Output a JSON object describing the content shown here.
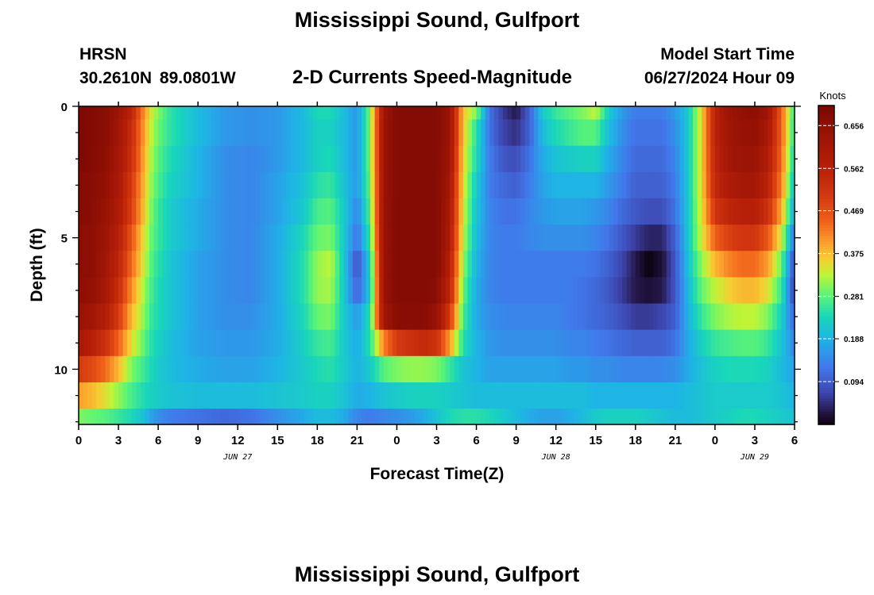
{
  "header": {
    "title": "Mississippi Sound, Gulfport",
    "station_id": "HRSN",
    "station_coords": "30.2610N  89.0801W",
    "subtitle": "2-D Currents Speed-Magnitude",
    "model_start_label": "Model Start Time",
    "model_start_value": "06/27/2024 Hour 09"
  },
  "footer": {
    "title": "Mississippi Sound, Gulfport"
  },
  "chart_data": {
    "type": "heatmap",
    "title": "2-D Currents Speed-Magnitude",
    "xlabel": "Forecast Time(Z)",
    "ylabel": "Depth (ft)",
    "x_range_hours": [
      0,
      54
    ],
    "y_range_ft": [
      0,
      12.1
    ],
    "y_ticks": [
      0,
      5,
      10
    ],
    "x_ticks": [
      0,
      3,
      6,
      9,
      12,
      15,
      18,
      21,
      24,
      27,
      30,
      33,
      36,
      39,
      42,
      45,
      48,
      51,
      54
    ],
    "x_tick_labels": [
      "0",
      "3",
      "6",
      "9",
      "12",
      "15",
      "18",
      "21",
      "0",
      "3",
      "6",
      "9",
      "12",
      "15",
      "18",
      "21",
      "0",
      "3",
      "6"
    ],
    "date_labels": [
      {
        "hour": 12,
        "text": "JUN 27"
      },
      {
        "hour": 36,
        "text": "JUN 28"
      },
      {
        "hour": 51,
        "text": "JUN 29"
      }
    ],
    "colorbar": {
      "unit": "Knots",
      "min": 0.0,
      "max": 0.7,
      "ticks": [
        0.094,
        0.188,
        0.281,
        0.375,
        0.469,
        0.562,
        0.656
      ]
    },
    "depth_levels_ft": [
      0,
      1,
      2,
      3,
      4,
      5,
      6,
      7,
      8,
      9,
      10,
      11,
      12
    ],
    "time_keyframes_hours": [
      0,
      1,
      2,
      3,
      4,
      5,
      5.5,
      6,
      7,
      9,
      11,
      13,
      15,
      17,
      18,
      19,
      20,
      21,
      22,
      23,
      24,
      25,
      26,
      27,
      28,
      29,
      30,
      31,
      32,
      33,
      34,
      35,
      36,
      37,
      38,
      39,
      40,
      41,
      42,
      43,
      44,
      45,
      46,
      47,
      48,
      49,
      50,
      51,
      52,
      53,
      54
    ],
    "speed_knots_at_depth": [
      [
        0.69,
        0.68,
        0.67,
        0.63,
        0.55,
        0.4,
        0.34,
        0.3,
        0.25,
        0.2,
        0.16,
        0.15,
        0.16,
        0.2,
        0.24,
        0.24,
        0.2,
        0.16,
        0.3,
        0.62,
        0.68,
        0.68,
        0.68,
        0.68,
        0.63,
        0.37,
        0.3,
        0.12,
        0.06,
        0.03,
        0.1,
        0.22,
        0.26,
        0.28,
        0.3,
        0.33,
        0.22,
        0.16,
        0.13,
        0.13,
        0.13,
        0.16,
        0.22,
        0.36,
        0.56,
        0.63,
        0.65,
        0.66,
        0.62,
        0.45,
        0.25
      ],
      [
        0.69,
        0.68,
        0.67,
        0.62,
        0.53,
        0.39,
        0.33,
        0.29,
        0.25,
        0.2,
        0.16,
        0.15,
        0.16,
        0.2,
        0.23,
        0.23,
        0.2,
        0.16,
        0.3,
        0.63,
        0.68,
        0.68,
        0.68,
        0.68,
        0.63,
        0.37,
        0.25,
        0.12,
        0.07,
        0.05,
        0.1,
        0.2,
        0.24,
        0.26,
        0.28,
        0.28,
        0.2,
        0.15,
        0.12,
        0.12,
        0.12,
        0.15,
        0.22,
        0.36,
        0.56,
        0.62,
        0.64,
        0.65,
        0.6,
        0.45,
        0.24
      ],
      [
        0.69,
        0.68,
        0.66,
        0.61,
        0.52,
        0.38,
        0.32,
        0.28,
        0.24,
        0.19,
        0.15,
        0.14,
        0.16,
        0.2,
        0.23,
        0.24,
        0.2,
        0.16,
        0.3,
        0.63,
        0.68,
        0.68,
        0.68,
        0.68,
        0.62,
        0.36,
        0.24,
        0.13,
        0.09,
        0.08,
        0.12,
        0.18,
        0.21,
        0.22,
        0.23,
        0.23,
        0.18,
        0.14,
        0.11,
        0.11,
        0.11,
        0.14,
        0.22,
        0.36,
        0.55,
        0.61,
        0.63,
        0.63,
        0.58,
        0.44,
        0.22
      ],
      [
        0.68,
        0.67,
        0.65,
        0.6,
        0.5,
        0.37,
        0.31,
        0.27,
        0.23,
        0.19,
        0.15,
        0.14,
        0.17,
        0.21,
        0.25,
        0.26,
        0.21,
        0.16,
        0.29,
        0.63,
        0.68,
        0.68,
        0.68,
        0.68,
        0.61,
        0.35,
        0.22,
        0.13,
        0.11,
        0.1,
        0.13,
        0.17,
        0.19,
        0.19,
        0.19,
        0.19,
        0.16,
        0.13,
        0.1,
        0.1,
        0.1,
        0.13,
        0.22,
        0.36,
        0.54,
        0.59,
        0.61,
        0.61,
        0.56,
        0.42,
        0.2
      ],
      [
        0.68,
        0.67,
        0.64,
        0.59,
        0.49,
        0.36,
        0.3,
        0.26,
        0.22,
        0.18,
        0.15,
        0.14,
        0.17,
        0.22,
        0.27,
        0.28,
        0.22,
        0.14,
        0.28,
        0.64,
        0.68,
        0.68,
        0.68,
        0.68,
        0.6,
        0.34,
        0.21,
        0.14,
        0.12,
        0.12,
        0.14,
        0.16,
        0.17,
        0.17,
        0.17,
        0.16,
        0.14,
        0.11,
        0.09,
        0.08,
        0.08,
        0.12,
        0.22,
        0.35,
        0.51,
        0.55,
        0.57,
        0.57,
        0.52,
        0.39,
        0.17
      ],
      [
        0.67,
        0.66,
        0.63,
        0.57,
        0.46,
        0.34,
        0.29,
        0.26,
        0.22,
        0.18,
        0.15,
        0.14,
        0.18,
        0.24,
        0.29,
        0.3,
        0.22,
        0.12,
        0.26,
        0.64,
        0.68,
        0.68,
        0.68,
        0.68,
        0.59,
        0.33,
        0.2,
        0.14,
        0.13,
        0.13,
        0.14,
        0.15,
        0.15,
        0.15,
        0.15,
        0.14,
        0.12,
        0.09,
        0.06,
        0.04,
        0.04,
        0.1,
        0.22,
        0.34,
        0.45,
        0.49,
        0.51,
        0.51,
        0.46,
        0.34,
        0.12
      ],
      [
        0.67,
        0.66,
        0.62,
        0.55,
        0.44,
        0.33,
        0.28,
        0.25,
        0.21,
        0.17,
        0.15,
        0.14,
        0.18,
        0.25,
        0.31,
        0.33,
        0.22,
        0.08,
        0.23,
        0.64,
        0.68,
        0.68,
        0.68,
        0.68,
        0.57,
        0.31,
        0.19,
        0.14,
        0.13,
        0.13,
        0.13,
        0.13,
        0.13,
        0.13,
        0.13,
        0.12,
        0.1,
        0.07,
        0.03,
        0.0,
        0.02,
        0.09,
        0.21,
        0.31,
        0.38,
        0.42,
        0.44,
        0.44,
        0.4,
        0.29,
        0.07
      ],
      [
        0.66,
        0.65,
        0.61,
        0.53,
        0.41,
        0.31,
        0.27,
        0.24,
        0.21,
        0.17,
        0.15,
        0.14,
        0.18,
        0.25,
        0.31,
        0.32,
        0.22,
        0.1,
        0.22,
        0.64,
        0.68,
        0.68,
        0.68,
        0.67,
        0.55,
        0.29,
        0.18,
        0.14,
        0.13,
        0.13,
        0.13,
        0.13,
        0.13,
        0.13,
        0.12,
        0.11,
        0.09,
        0.06,
        0.03,
        0.02,
        0.03,
        0.09,
        0.2,
        0.29,
        0.33,
        0.36,
        0.38,
        0.38,
        0.35,
        0.26,
        0.06
      ],
      [
        0.64,
        0.62,
        0.58,
        0.5,
        0.38,
        0.3,
        0.26,
        0.24,
        0.21,
        0.17,
        0.15,
        0.15,
        0.18,
        0.24,
        0.29,
        0.3,
        0.22,
        0.16,
        0.25,
        0.62,
        0.67,
        0.67,
        0.67,
        0.64,
        0.5,
        0.27,
        0.18,
        0.15,
        0.14,
        0.14,
        0.14,
        0.14,
        0.14,
        0.13,
        0.12,
        0.11,
        0.1,
        0.08,
        0.06,
        0.06,
        0.07,
        0.1,
        0.19,
        0.26,
        0.3,
        0.32,
        0.33,
        0.33,
        0.3,
        0.23,
        0.1
      ],
      [
        0.6,
        0.57,
        0.52,
        0.45,
        0.35,
        0.28,
        0.25,
        0.23,
        0.2,
        0.17,
        0.16,
        0.16,
        0.18,
        0.23,
        0.26,
        0.27,
        0.22,
        0.18,
        0.25,
        0.42,
        0.5,
        0.52,
        0.54,
        0.52,
        0.4,
        0.25,
        0.19,
        0.16,
        0.15,
        0.15,
        0.15,
        0.15,
        0.15,
        0.14,
        0.14,
        0.13,
        0.12,
        0.11,
        0.1,
        0.1,
        0.1,
        0.12,
        0.18,
        0.23,
        0.26,
        0.27,
        0.28,
        0.28,
        0.26,
        0.21,
        0.14
      ],
      [
        0.5,
        0.48,
        0.44,
        0.38,
        0.3,
        0.26,
        0.24,
        0.22,
        0.2,
        0.18,
        0.17,
        0.17,
        0.19,
        0.22,
        0.24,
        0.25,
        0.22,
        0.19,
        0.22,
        0.28,
        0.3,
        0.31,
        0.31,
        0.3,
        0.26,
        0.21,
        0.19,
        0.17,
        0.17,
        0.17,
        0.17,
        0.17,
        0.17,
        0.16,
        0.16,
        0.15,
        0.15,
        0.14,
        0.14,
        0.14,
        0.14,
        0.15,
        0.18,
        0.21,
        0.23,
        0.24,
        0.24,
        0.24,
        0.23,
        0.2,
        0.17
      ],
      [
        0.4,
        0.38,
        0.35,
        0.31,
        0.27,
        0.24,
        0.23,
        0.22,
        0.21,
        0.2,
        0.2,
        0.2,
        0.21,
        0.22,
        0.23,
        0.23,
        0.21,
        0.18,
        0.19,
        0.21,
        0.22,
        0.23,
        0.23,
        0.23,
        0.22,
        0.21,
        0.2,
        0.2,
        0.2,
        0.2,
        0.2,
        0.2,
        0.2,
        0.2,
        0.2,
        0.19,
        0.19,
        0.19,
        0.19,
        0.19,
        0.19,
        0.19,
        0.2,
        0.21,
        0.22,
        0.22,
        0.22,
        0.22,
        0.22,
        0.21,
        0.19
      ],
      [
        0.3,
        0.29,
        0.28,
        0.26,
        0.24,
        0.2,
        0.17,
        0.15,
        0.13,
        0.12,
        0.11,
        0.12,
        0.15,
        0.18,
        0.2,
        0.2,
        0.18,
        0.14,
        0.13,
        0.14,
        0.15,
        0.16,
        0.18,
        0.21,
        0.24,
        0.25,
        0.25,
        0.24,
        0.22,
        0.2,
        0.18,
        0.17,
        0.17,
        0.18,
        0.2,
        0.22,
        0.23,
        0.23,
        0.23,
        0.22,
        0.21,
        0.2,
        0.2,
        0.21,
        0.22,
        0.23,
        0.24,
        0.24,
        0.23,
        0.22,
        0.21
      ]
    ]
  }
}
